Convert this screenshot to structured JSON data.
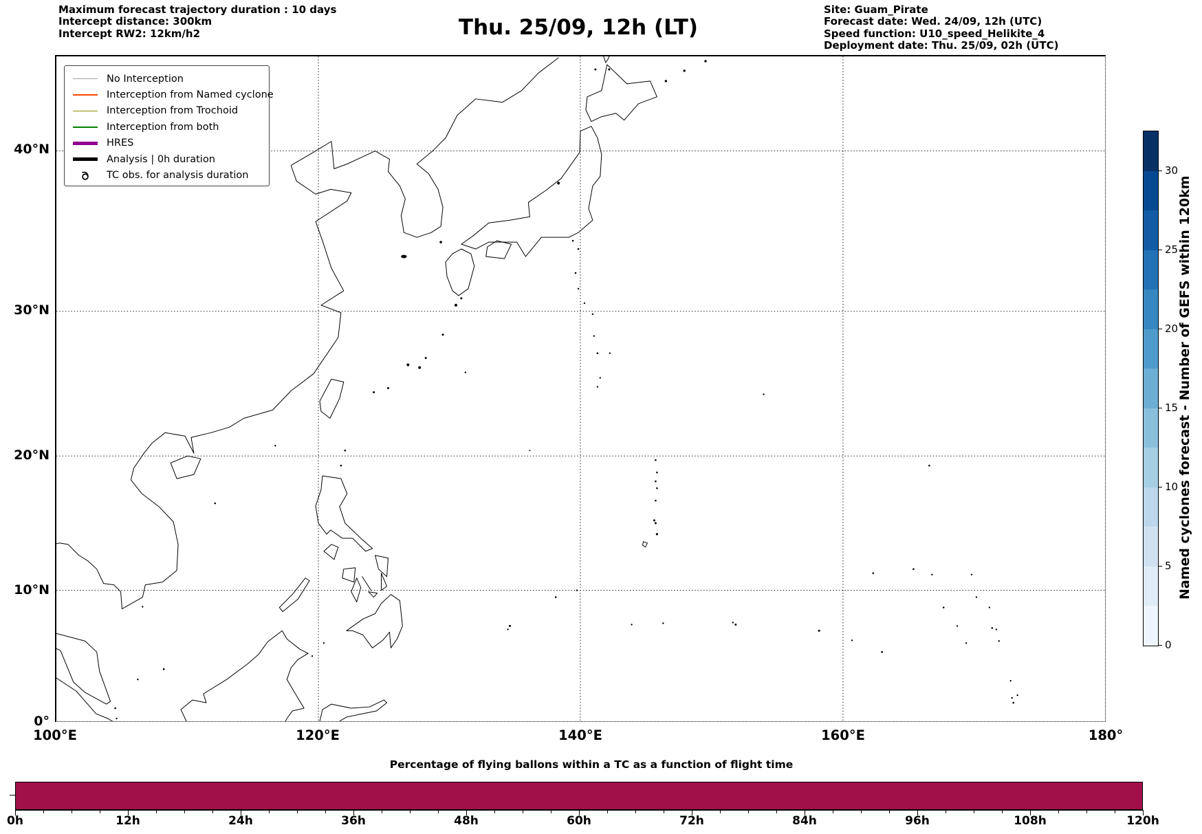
{
  "header": {
    "info_left": [
      "Maximum forecast trajectory duration : 10 days",
      "Intercept distance: 300km",
      "Intercept RW2: 12km/h2"
    ],
    "title": "Thu. 25/09, 12h (LT)",
    "info_right": [
      "Site: Guam_Pirate",
      "Forecast date: Wed. 24/09, 12h (UTC)",
      "Speed function: U10_speed_Helikite_4",
      "Deployment date: Thu. 25/09, 02h (UTC)"
    ]
  },
  "legend": {
    "items": [
      {
        "label": "No Interception",
        "color": "#a0a0a0",
        "thick": false,
        "symbol": "line"
      },
      {
        "label": "Interception from Named cyclone",
        "color": "#ff4500",
        "thick": false,
        "symbol": "line"
      },
      {
        "label": "Interception from Trochoid",
        "color": "#8c8c00",
        "thick": false,
        "symbol": "line"
      },
      {
        "label": "Interception from both",
        "color": "#008000",
        "thick": false,
        "symbol": "line"
      },
      {
        "label": "HRES",
        "color": "#8f008f",
        "thick": true,
        "symbol": "line"
      },
      {
        "label": "Analysis | 0h duration",
        "color": "#000000",
        "thick": true,
        "symbol": "line"
      },
      {
        "label": "TC obs. for analysis duration",
        "color": "#000000",
        "thick": false,
        "symbol": "cyclone-icon"
      }
    ]
  },
  "map": {
    "x_tick_labels": [
      "100°E",
      "120°E",
      "140°E",
      "160°E",
      "180°"
    ],
    "y_tick_labels": [
      "40°N",
      "30°N",
      "20°N",
      "10°N",
      "0°"
    ]
  },
  "colorbar": {
    "label": "Named cyclones forecast - Number of GEFS within 120km",
    "tick_labels": [
      "0",
      "5",
      "10",
      "15",
      "20",
      "25",
      "30"
    ],
    "tick_values": [
      0,
      5,
      10,
      15,
      20,
      25,
      30
    ],
    "value_range": [
      0,
      32.5
    ],
    "segment_colors_bottom_to_top": [
      "#eef5fc",
      "#dfecf7",
      "#d0e2f2",
      "#bdd7ec",
      "#a6cee4",
      "#8bc0dd",
      "#6daed5",
      "#4f9bcb",
      "#3787c0",
      "#2272b5",
      "#115ca5",
      "#084a91",
      "#083166"
    ]
  },
  "bottom_chart": {
    "title": "Percentage of flying ballons within a TC as a function of flight time",
    "x_tick_labels": [
      "0h",
      "12h",
      "24h",
      "36h",
      "48h",
      "60h",
      "72h",
      "84h",
      "96h",
      "108h",
      "120h"
    ],
    "bar_color": "#a2104a"
  },
  "chart_data": [
    {
      "type": "heatmap",
      "subtype": "geographic-map",
      "title": "Thu. 25/09, 12h (LT)",
      "xlabel": "",
      "ylabel": "",
      "x_tick_labels": [
        "100°E",
        "120°E",
        "140°E",
        "160°E",
        "180°"
      ],
      "y_tick_labels": [
        "0°",
        "10°N",
        "20°N",
        "30°N",
        "40°N"
      ],
      "xlim_degrees_east": [
        100,
        180
      ],
      "ylim_degrees_north": [
        0,
        46
      ],
      "projection": "mercator-like (latitude spacing shrinks toward equator)",
      "grid": true,
      "legend_position": "upper left",
      "legend_entries": [
        "No Interception",
        "Interception from Named cyclone",
        "Interception from Trochoid",
        "Interception from both",
        "HRES",
        "Analysis | 0h duration",
        "TC obs. for analysis duration"
      ],
      "colorbar_label": "Named cyclones forecast - Number of GEFS within 120km",
      "colorbar_ticks": [
        0,
        5,
        10,
        15,
        20,
        25,
        30
      ],
      "colorbar_range": [
        0,
        32.5
      ],
      "colorbar_levels": 13,
      "plotted_series": "none visible — only black coastlines of East/Southeast Asia and the Western Pacific (China, Korea, Japan, Taiwan, Philippines, Borneo, Micronesia island dots); no trajectories or shaded cells drawn"
    },
    {
      "type": "bar",
      "title": "Percentage of flying ballons within a TC as a function of flight time",
      "categories": [
        "0h",
        "12h",
        "24h",
        "36h",
        "48h",
        "60h",
        "72h",
        "84h",
        "96h",
        "108h",
        "120h"
      ],
      "values": [
        100,
        100,
        100,
        100,
        100,
        100,
        100,
        100,
        100,
        100,
        100
      ],
      "value_note": "single continuous full-height bar spanning 0h to 120h; no y-axis tick labels visible",
      "x_minor_tick_step_hours": 3,
      "x_major_tick_step_hours": 12,
      "bar_color": "#a2104a",
      "xlabel": "",
      "ylabel": ""
    }
  ]
}
